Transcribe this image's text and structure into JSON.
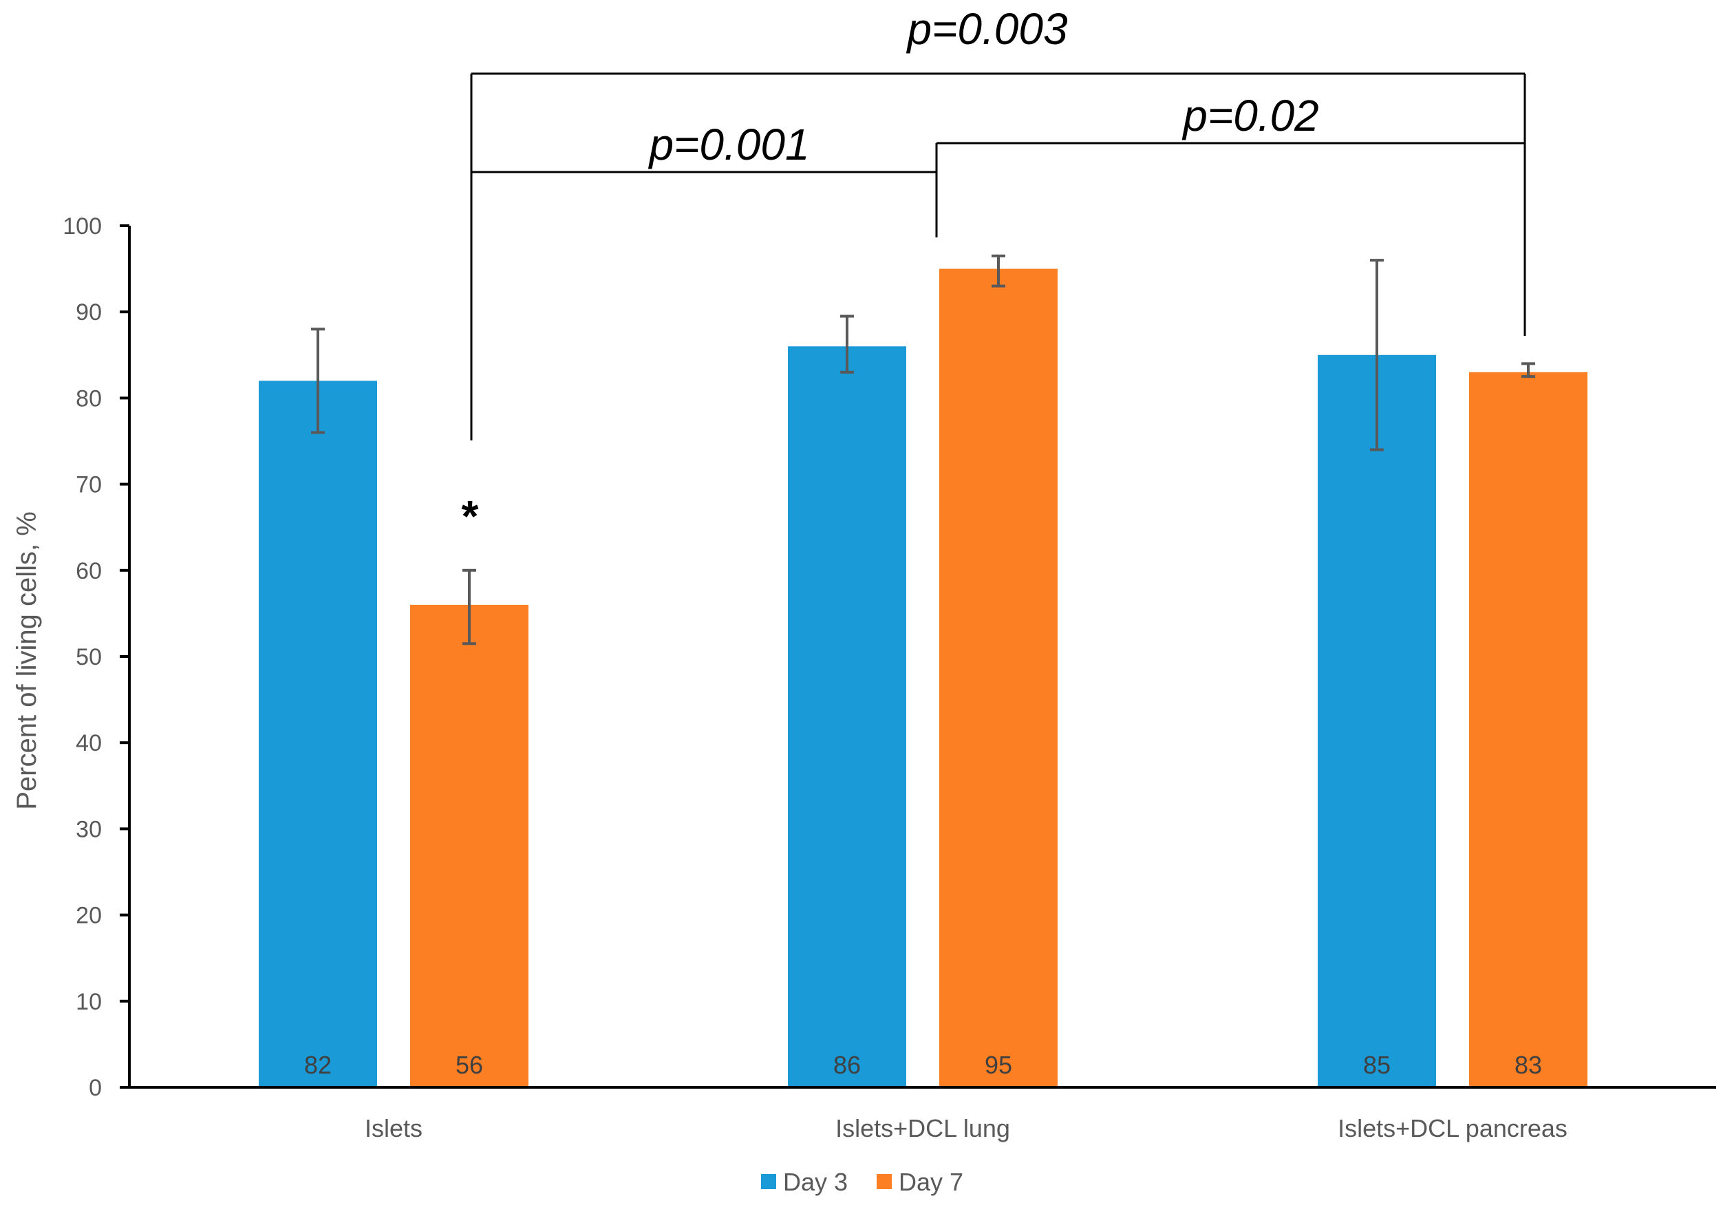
{
  "chart_data": {
    "type": "bar",
    "categories": [
      "Islets",
      "Islets+DCL lung",
      "Islets+DCL pancreas"
    ],
    "series": [
      {
        "name": "Day 3",
        "color": "#1a9ad6",
        "values": [
          82,
          86,
          85
        ],
        "labels": [
          "82",
          "86",
          "85"
        ],
        "error_low": [
          76,
          83,
          74
        ],
        "error_high": [
          88,
          89.5,
          96
        ]
      },
      {
        "name": "Day 7",
        "color": "#fd7f23",
        "values": [
          56,
          95,
          83
        ],
        "labels": [
          "56",
          "95",
          "83"
        ],
        "error_low": [
          51.5,
          93,
          82.5
        ],
        "error_high": [
          60,
          96.5,
          84
        ]
      }
    ],
    "ylabel": "Percent of living cells, %",
    "ylim": [
      0,
      100
    ],
    "yticks": [
      "0",
      "10",
      "20",
      "30",
      "40",
      "50",
      "60",
      "70",
      "80",
      "90",
      "100"
    ],
    "legend_position": "bottom-center",
    "grid": false,
    "annotations": {
      "star": "*",
      "brackets": [
        {
          "label": "p=0.001",
          "from": "Islets / Day 7",
          "to": "Islets+DCL lung"
        },
        {
          "label": "p=0.02",
          "from": "Islets+DCL lung",
          "to": "Islets+DCL pancreas / Day 7"
        },
        {
          "label": "p=0.003",
          "from": "Islets / Day 7",
          "to": "Islets+DCL pancreas / Day 7"
        }
      ]
    }
  }
}
